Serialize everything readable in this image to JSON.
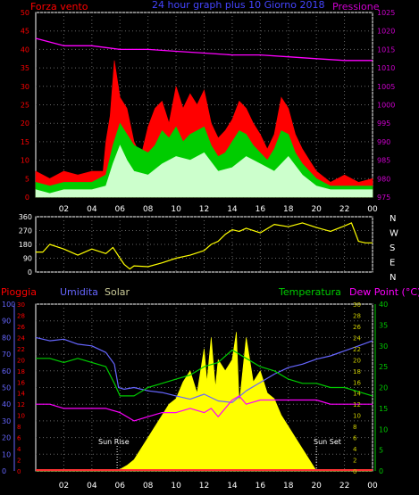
{
  "chart_data": [
    {
      "type": "line",
      "title": "24 hour graph plus 10 Giorno 2018",
      "left_label": "Forza vento",
      "right_label": "Pressione",
      "x_ticks": [
        "02",
        "04",
        "06",
        "08",
        "10",
        "12",
        "14",
        "16",
        "18",
        "20",
        "22",
        "00"
      ],
      "left_ticks": [
        "0",
        "5",
        "10",
        "15",
        "20",
        "25",
        "30",
        "35",
        "40",
        "45",
        "50"
      ],
      "right_ticks": [
        "975",
        "980",
        "985",
        "990",
        "995",
        "1000",
        "1005",
        "1010",
        "1015",
        "1020",
        "1025"
      ],
      "ylim": [
        0,
        50
      ],
      "y2lim": [
        975,
        1025
      ],
      "grid": true,
      "series": [
        {
          "role": "gust",
          "color": "#ff0000",
          "x": [
            0,
            1,
            2,
            3,
            4,
            4.8,
            5,
            5.3,
            5.6,
            6,
            6.5,
            7,
            7.5,
            8,
            8.5,
            9,
            9.5,
            10,
            10.5,
            11,
            11.5,
            12,
            12.5,
            13,
            13.5,
            14,
            14.5,
            15,
            15.5,
            16,
            16.5,
            17,
            17.5,
            18,
            18.5,
            19,
            19.5,
            20,
            21,
            22,
            23,
            24
          ],
          "values": [
            7,
            5,
            7,
            6,
            7,
            7,
            15,
            22,
            37,
            27,
            24,
            15,
            11,
            19,
            24,
            26,
            20,
            30,
            24,
            28,
            25,
            29,
            20,
            16,
            18,
            21,
            26,
            24,
            20,
            17,
            13,
            17,
            27,
            24,
            17,
            13,
            10,
            7,
            4,
            6,
            4,
            5
          ]
        },
        {
          "role": "average",
          "color": "#00cc00",
          "x": [
            0,
            1,
            2,
            3,
            4,
            5,
            5.5,
            6,
            6.5,
            7,
            8,
            8.5,
            9,
            9.5,
            10,
            10.5,
            11,
            11.5,
            12,
            12.5,
            13,
            13.5,
            14,
            14.5,
            15,
            15.5,
            16,
            16.5,
            17,
            17.5,
            18,
            18.5,
            19,
            20,
            21,
            22,
            23,
            24
          ],
          "values": [
            4,
            3,
            4,
            4,
            4,
            6,
            14,
            20,
            17,
            14,
            12,
            14,
            18,
            16,
            19,
            15,
            17,
            18,
            19,
            14,
            11,
            12,
            15,
            18,
            17,
            14,
            12,
            10,
            13,
            18,
            17,
            12,
            9,
            5,
            3,
            3,
            3,
            3
          ]
        },
        {
          "role": "wind-speed",
          "color": "#ccffcc",
          "x": [
            0,
            1,
            2,
            3,
            4,
            5,
            5.5,
            6,
            6.5,
            7,
            8,
            9,
            10,
            11,
            12,
            13,
            14,
            15,
            16,
            17,
            18,
            19,
            20,
            21,
            22,
            23,
            24
          ],
          "values": [
            2,
            1,
            2,
            2,
            2,
            3,
            9,
            14,
            10,
            7,
            6,
            9,
            11,
            10,
            12,
            7,
            8,
            11,
            9,
            7,
            11,
            6,
            3,
            2,
            2,
            2,
            2
          ]
        },
        {
          "role": "pressure",
          "color": "#ff00ff",
          "axis": "right",
          "x": [
            0,
            2,
            4,
            6,
            8,
            10,
            12,
            14,
            16,
            18,
            20,
            22,
            24
          ],
          "values": [
            1018,
            1016,
            1016,
            1015,
            1015,
            1014.5,
            1014,
            1013.5,
            1013.5,
            1013,
            1012.5,
            1012,
            1012
          ]
        }
      ]
    },
    {
      "type": "scatter",
      "right_labels": [
        "N",
        "W",
        "S",
        "E",
        "N"
      ],
      "left_ticks": [
        "360",
        "270",
        "180",
        "90",
        "0"
      ],
      "x_ticks": [
        "02",
        "04",
        "06",
        "08",
        "10",
        "12",
        "14",
        "16",
        "18",
        "20",
        "22",
        "00"
      ],
      "ylim": [
        0,
        360
      ],
      "series": [
        {
          "role": "wind-direction",
          "color": "#ffff00",
          "x": [
            0,
            0.5,
            1,
            2,
            3,
            4,
            5,
            5.5,
            6,
            6.3,
            6.7,
            7,
            8,
            9,
            10,
            11,
            12,
            12.5,
            13,
            13.5,
            14,
            14.5,
            15,
            16,
            17,
            18,
            19,
            20,
            21,
            22,
            22.5,
            23,
            23.5,
            24
          ],
          "values": [
            130,
            130,
            180,
            150,
            110,
            150,
            120,
            160,
            90,
            50,
            20,
            40,
            35,
            60,
            90,
            110,
            140,
            180,
            200,
            245,
            275,
            265,
            285,
            255,
            310,
            295,
            320,
            290,
            265,
            300,
            320,
            200,
            190,
            190
          ]
        }
      ]
    },
    {
      "type": "line",
      "labels": {
        "rain": "Pioggia",
        "humidity": "Umidita",
        "solar": "Solar",
        "temperature": "Temperatura",
        "dewpoint": "Dew Point (°C)"
      },
      "annotations": [
        "Sun Rise",
        "Sun Set"
      ],
      "humidity_ticks": [
        "100",
        "90",
        "80",
        "70",
        "60",
        "50",
        "40",
        "30",
        "20",
        "10",
        "0"
      ],
      "rain_ticks": [
        "30",
        "28",
        "26",
        "24",
        "22",
        "20",
        "18",
        "16",
        "14",
        "12",
        "10",
        "8",
        "6",
        "4",
        "2",
        "0"
      ],
      "solar_ticks": [
        "30",
        "28",
        "26",
        "24",
        "22",
        "20",
        "18",
        "16",
        "14",
        "12",
        "10",
        "8",
        "6",
        "4",
        "2",
        "0"
      ],
      "temperature_ticks": [
        "40",
        "35",
        "30",
        "25",
        "20",
        "15",
        "10",
        "5",
        "0"
      ],
      "x_ticks": [
        "02",
        "04",
        "06",
        "08",
        "10",
        "12",
        "14",
        "16",
        "18",
        "20",
        "22",
        "00"
      ],
      "grid": true,
      "series": [
        {
          "role": "humidity",
          "color": "#6666ff",
          "axis": "humidity",
          "ylim": [
            0,
            100
          ],
          "x": [
            0,
            1,
            2,
            3,
            4,
            5,
            5.6,
            5.9,
            6.3,
            7,
            8,
            9,
            10,
            11,
            12,
            13,
            14,
            15,
            16,
            17,
            18,
            19,
            20,
            21,
            22,
            23,
            24
          ],
          "values": [
            80,
            78,
            79,
            76,
            75,
            71,
            64,
            50,
            49,
            50,
            48,
            47,
            45,
            43,
            46,
            42,
            41,
            48,
            53,
            58,
            62,
            64,
            67,
            69,
            72,
            75,
            78
          ]
        },
        {
          "role": "temperature",
          "color": "#00cc00",
          "axis": "temperature",
          "ylim": [
            0,
            40
          ],
          "x": [
            0,
            1,
            2,
            3,
            4,
            5,
            5.6,
            6,
            7,
            8,
            9,
            10,
            11,
            12,
            13,
            14,
            15,
            16,
            17,
            18,
            19,
            20,
            21,
            22,
            23,
            24
          ],
          "values": [
            27,
            27,
            26,
            27,
            26,
            25,
            21,
            18,
            18,
            20,
            21,
            22,
            23,
            25,
            26,
            29,
            27,
            25,
            24,
            22,
            21,
            21,
            20,
            20,
            19,
            18
          ]
        },
        {
          "role": "dewpoint",
          "color": "#ff00ff",
          "axis": "temperature",
          "ylim": [
            0,
            40
          ],
          "x": [
            0,
            1,
            2,
            3,
            4,
            5,
            6,
            7,
            8,
            9,
            10,
            11,
            12,
            12.5,
            13,
            13.5,
            14,
            14.5,
            15,
            16,
            17,
            18,
            19,
            20,
            21,
            22,
            23,
            24
          ],
          "values": [
            16,
            16,
            15,
            15,
            15,
            15,
            14,
            12,
            13,
            14,
            14,
            15,
            14,
            15,
            13,
            15,
            17,
            18,
            16,
            17,
            17,
            17,
            17,
            17,
            16,
            16,
            16,
            16
          ]
        },
        {
          "role": "solar",
          "color": "#ffff00",
          "axis": "solar",
          "ylim": [
            0,
            30
          ],
          "x": [
            0,
            5.8,
            6.5,
            7,
            7.5,
            8,
            8.5,
            9,
            9.5,
            10,
            10.5,
            11,
            11.5,
            12,
            12.2,
            12.5,
            12.8,
            13,
            13.5,
            14,
            14.3,
            14.5,
            15,
            15.5,
            16,
            16.5,
            17,
            17.5,
            18,
            18.5,
            19,
            19.5,
            20,
            24
          ],
          "values": [
            0,
            0,
            1,
            2,
            4,
            6,
            8,
            10,
            12,
            13,
            16,
            18,
            14,
            22,
            16,
            24,
            15,
            20,
            18,
            20,
            25,
            12,
            24,
            16,
            18,
            14,
            13,
            10,
            8,
            6,
            4,
            2,
            0,
            0
          ]
        },
        {
          "role": "rain",
          "color": "#ff3333",
          "axis": "rain",
          "ylim": [
            0,
            30
          ],
          "x": [
            0,
            24
          ],
          "values": [
            0,
            0
          ]
        }
      ]
    }
  ]
}
